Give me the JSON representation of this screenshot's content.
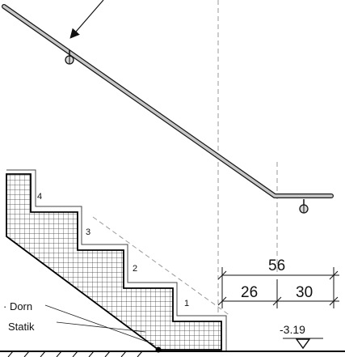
{
  "steps": [
    "1",
    "2",
    "3",
    "4"
  ],
  "dimensions": {
    "total": "56",
    "left": "26",
    "right": "30"
  },
  "level": "-3.19",
  "labels": {
    "dorn": "· Dorn",
    "statik": "Statik"
  },
  "colors": {
    "line": "#1a1a1a",
    "handrail_fill": "#c8c8c8",
    "dashed": "#9a9a9a",
    "hatch": "#333333"
  }
}
